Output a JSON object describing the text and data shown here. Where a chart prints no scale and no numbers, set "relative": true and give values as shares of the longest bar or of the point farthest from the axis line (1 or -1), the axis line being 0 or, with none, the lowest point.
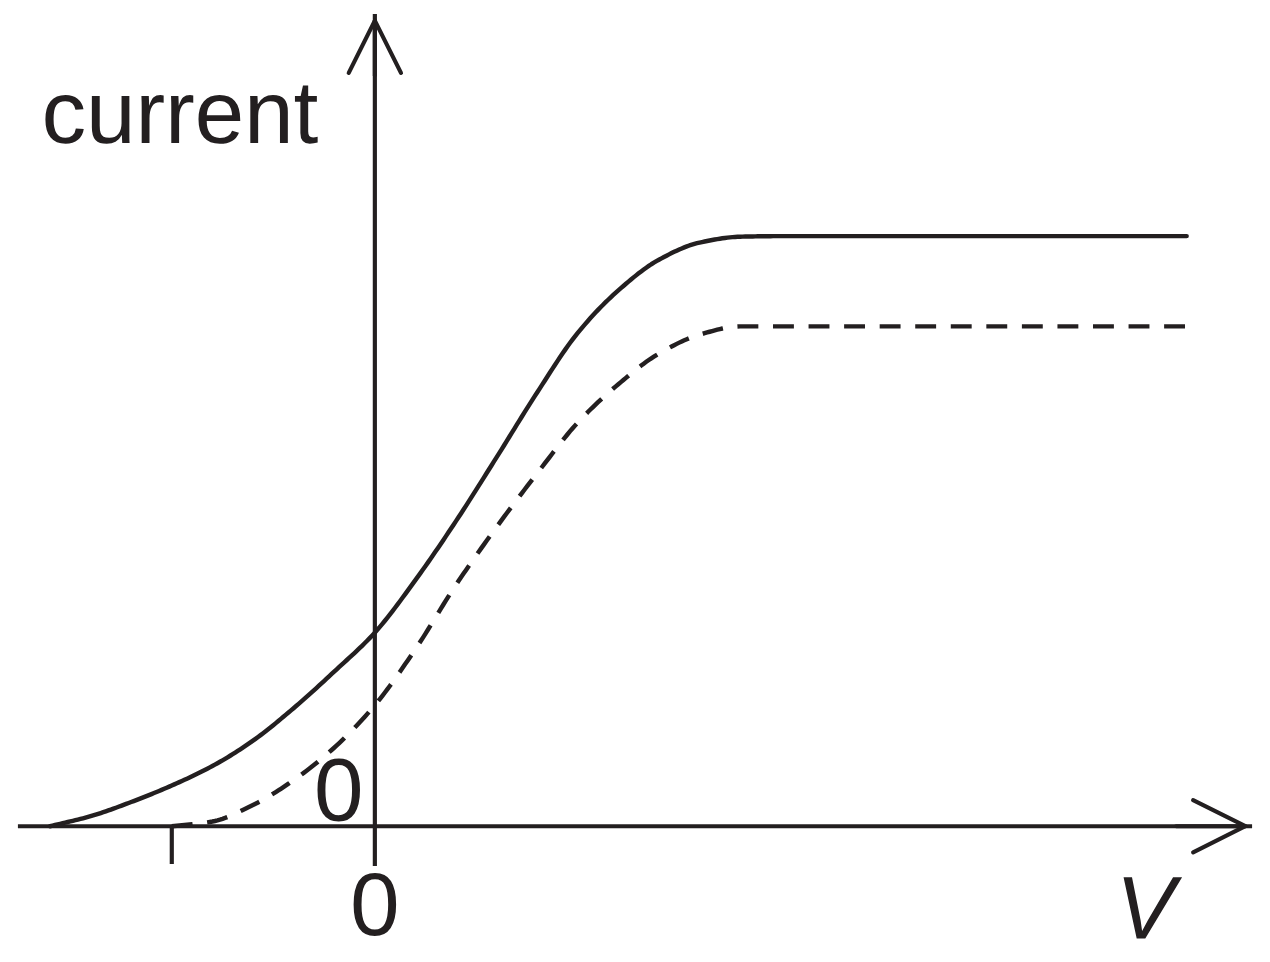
{
  "chart_data": {
    "type": "line",
    "relative": true,
    "xlabel": "V",
    "ylabel": "current",
    "categories": [
      null,
      null,
      null,
      null,
      null,
      null,
      null,
      null,
      null,
      null,
      null,
      null,
      null,
      null,
      null,
      null,
      null,
      null,
      null,
      null,
      null,
      null,
      null,
      null,
      null,
      null,
      null,
      null,
      null
    ],
    "annotations": [
      "0",
      "0"
    ],
    "series": [
      {
        "color": "#231f20",
        "line_style": "solid",
        "values": [
          0,
          0.017,
          0.041,
          0.069,
          0.102,
          0.145,
          0.2,
          0.262,
          0.328,
          0.417,
          0.517,
          0.625,
          0.735,
          0.836,
          0.908,
          0.96,
          0.989,
          0.999,
          1,
          1,
          1,
          1,
          1,
          1,
          1,
          1,
          1,
          1,
          1
        ]
      },
      {
        "color": "#231f20",
        "line_style": "dashed",
        "values": [
          null,
          null,
          null,
          0,
          0.008,
          0.036,
          0.078,
          0.133,
          0.205,
          0.3,
          0.409,
          0.507,
          0.598,
          0.684,
          0.749,
          0.801,
          0.833,
          0.847,
          0.847,
          0.847,
          0.847,
          0.847,
          0.847,
          0.847,
          0.847,
          0.847,
          0.847,
          0.847,
          0.847
        ]
      }
    ]
  }
}
